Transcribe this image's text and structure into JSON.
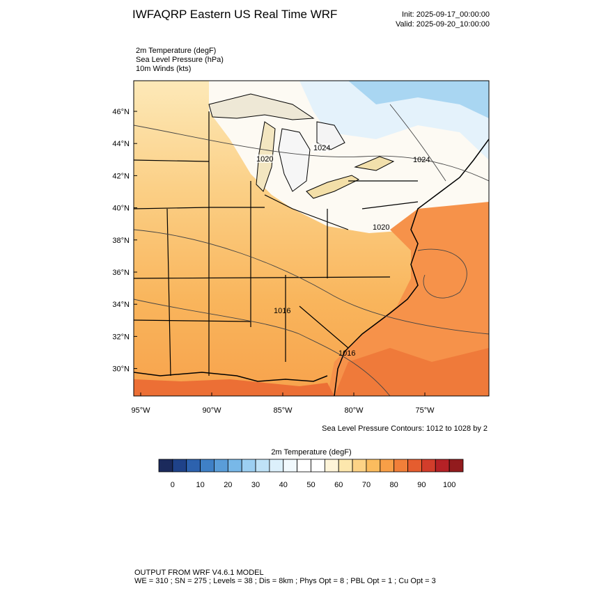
{
  "header": {
    "title": "IWFAQRP Eastern US Real Time WRF",
    "init": "Init: 2025-09-17_00:00:00",
    "valid": "Valid: 2025-09-20_10:00:00"
  },
  "fields": [
    "2m Temperature   (degF)",
    "Sea Level Pressure   (hPa)",
    "10m Winds   (kts)"
  ],
  "map": {
    "lat_labels": [
      "46°N",
      "44°N",
      "42°N",
      "40°N",
      "38°N",
      "36°N",
      "34°N",
      "32°N",
      "30°N"
    ],
    "lon_labels": [
      "95°W",
      "90°W",
      "85°W",
      "80°W",
      "75°W"
    ],
    "contour_labels": [
      "1020",
      "1024",
      "1024",
      "1020",
      "1016",
      "1016"
    ],
    "contour_note": "Sea Level Pressure Contours: 1012 to 1028 by 2"
  },
  "colorbar": {
    "title": "2m Temperature  (degF)",
    "labels": [
      "0",
      "10",
      "20",
      "30",
      "40",
      "50",
      "60",
      "70",
      "80",
      "90",
      "100"
    ],
    "colors": [
      "#1b2a5c",
      "#1f4289",
      "#2d62ae",
      "#3f80c6",
      "#5a9dd8",
      "#78b8e8",
      "#9ccff2",
      "#bfe2f7",
      "#dcf0fb",
      "#f1f9fd",
      "#ffffff",
      "#ffffff",
      "#fef4d8",
      "#fde7ad",
      "#fdd386",
      "#fbbc5e",
      "#f89f47",
      "#f17f39",
      "#e55d2f",
      "#d23d2b",
      "#b52126",
      "#921b1d"
    ]
  },
  "footer": {
    "line1": "OUTPUT FROM WRF V4.6.1 MODEL",
    "line2": "WE = 310 ; SN = 275 ; Levels = 38 ; Dis = 8km ; Phys Opt = 8 ; PBL Opt = 1 ; Cu Opt = 3"
  }
}
